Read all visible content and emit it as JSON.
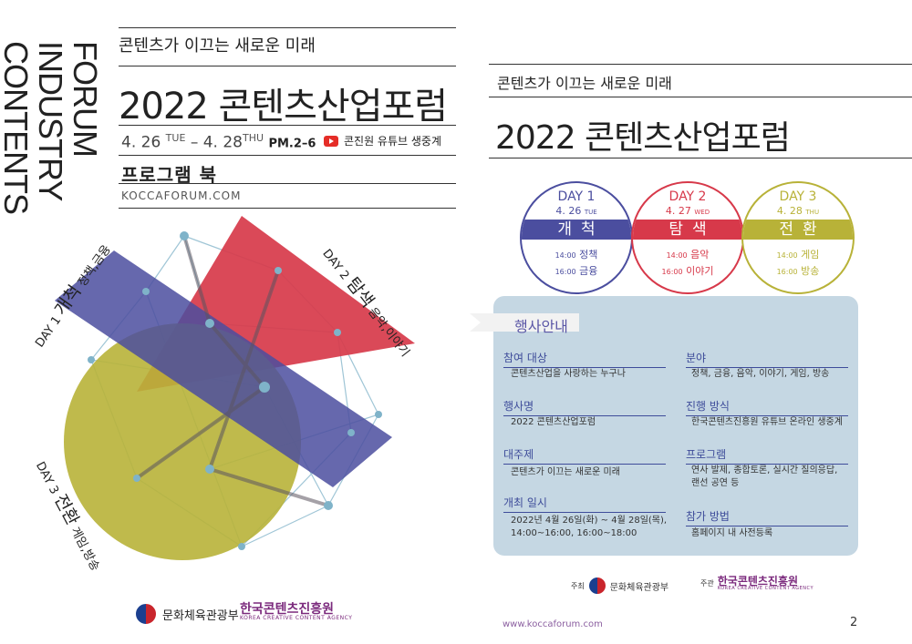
{
  "left": {
    "vertical_title": [
      "CONTENTS",
      "INDUSTRY",
      "FORUM"
    ],
    "tagline": "콘텐츠가 이끄는 새로운 미래",
    "title": "2022 콘텐츠산업포럼",
    "date_start": "4. 26",
    "dow_start": "TUE",
    "date_sep": "–",
    "date_end": "4. 28",
    "dow_end": "THU",
    "time": "PM.2–6",
    "youtube_text": "콘진원 유튜브 생중계",
    "program_book": "프로그램 북",
    "url": "KOCCAFORUM.COM",
    "labels": {
      "day1_prefix": "DAY 1",
      "day1_main": "개척",
      "day1_sub": "정책,금융",
      "day2_prefix": "DAY 2",
      "day2_main": "탐색",
      "day2_sub": "음악,이야기",
      "day3_prefix": "DAY 3",
      "day3_main": "전환",
      "day3_sub": "게임,방송"
    },
    "logo_ministry": "문화체육관광부",
    "logo_kcca": "한국콘텐츠진흥원",
    "logo_kcca_en": "KOREA CREATIVE CONTENT AGENCY"
  },
  "right": {
    "tagline": "콘텐츠가 이끄는 새로운 미래",
    "title": "2022 콘텐츠산업포럼",
    "days": [
      {
        "label": "DAY 1",
        "date": "4. 26",
        "dow": "TUE",
        "theme": "개척",
        "s1_time": "14:00",
        "s1": "정책",
        "s2_time": "16:00",
        "s2": "금융",
        "color": "#4b4e9f"
      },
      {
        "label": "DAY 2",
        "date": "4. 27",
        "dow": "WED",
        "theme": "탐색",
        "s1_time": "14:00",
        "s1": "음악",
        "s2_time": "16:00",
        "s2": "이야기",
        "color": "#d7394a"
      },
      {
        "label": "DAY 3",
        "date": "4. 28",
        "dow": "THU",
        "theme": "전환",
        "s1_time": "14:00",
        "s1": "게임",
        "s2_time": "16:00",
        "s2": "방송",
        "color": "#b8b238"
      }
    ],
    "info_title": "행사안내",
    "fields": {
      "audience_h": "참여 대상",
      "audience_v": "콘텐츠산업을 사랑하는 누구나",
      "area_h": "분야",
      "area_v": "정책, 금융, 음악, 이야기, 게임, 방송",
      "name_h": "행사명",
      "name_v": "2022 콘텐츠산업포럼",
      "method_h": "진행 방식",
      "method_v": "한국콘텐츠진흥원 유튜브 온라인 생중계",
      "theme_h": "대주제",
      "theme_v": "콘텐츠가 이끄는 새로운 미래",
      "program_h": "프로그램",
      "program_v1": "연사 발제, 종합토론, 실시간 질의응답,",
      "program_v2": "랜선 공연 등",
      "date_h": "개최 일시",
      "date_v1": "2022년 4월 26일(화) ~ 4월 28일(목),",
      "date_v2": "14:00~16:00, 16:00~18:00",
      "join_h": "참가 방법",
      "join_v": "홈페이지 내 사전등록"
    },
    "host_label": "주최",
    "host": "문화체육관광부",
    "organizer_label": "주관",
    "organizer": "한국콘텐츠진흥원",
    "organizer_en": "KOREA CREATIVE CONTENT AGENCY",
    "url": "www.koccaforum.com",
    "page": "2"
  },
  "colors": {
    "day1": "#4b4e9f",
    "day2": "#d7394a",
    "day3": "#b8b238",
    "box": "#c5d7e3",
    "accent": "#3e4c9a"
  }
}
